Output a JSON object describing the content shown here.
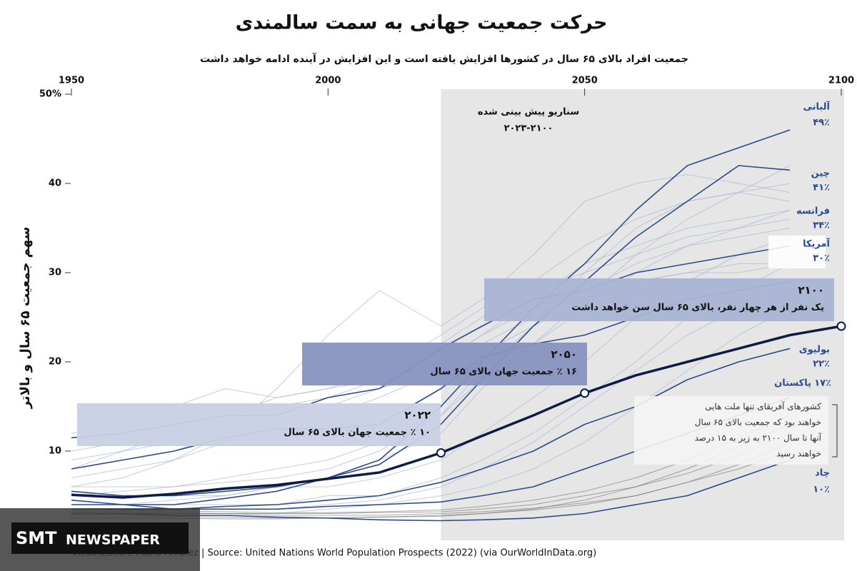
{
  "chart_data": {
    "type": "line",
    "title": "حرکت جمعیت جهانی به سمت سالمندی",
    "subtitle": "جمعیت افراد بالای ۶۵ سال در کشورها افزایش یافته است و این افزایش در آینده ادامه خواهد داشت",
    "y_label": "سهم جمعیت ۶۵ سال و بالاتر",
    "projection_label": [
      "سناریو پیش بینی شده",
      "۲۰۲۳-۲۱۰۰"
    ],
    "projection_start": 2022,
    "source": "Visualization: Pablo Alvarez | Source: United Nations World Population Prospects (2022) (via OurWorldInData.org)",
    "logo": [
      "SMT",
      "NEWSPAPER"
    ],
    "xlim": [
      1950,
      2100
    ],
    "xticks": [
      1950,
      2000,
      2050,
      2100
    ],
    "ylim": [
      0,
      50
    ],
    "yticks": [
      10,
      20,
      30,
      40,
      {
        "value": 50,
        "label": "50%"
      }
    ],
    "x": [
      1950,
      1960,
      1970,
      1980,
      1990,
      2000,
      2010,
      2022,
      2030,
      2040,
      2050,
      2060,
      2070,
      2080,
      2090,
      2100
    ],
    "series": [
      {
        "color": "#0d1b45",
        "values": [
          5.1,
          4.8,
          5.2,
          5.8,
          6.2,
          6.9,
          7.6,
          9.8,
          11.7,
          14,
          16.5,
          18.5,
          20,
          21.5,
          23,
          24
        ]
      },
      {
        "name": "آلبانی",
        "label": "۴۹٪",
        "color": "#2c4a8c",
        "values": [
          5.5,
          5,
          5,
          5.5,
          6,
          7,
          9,
          15,
          20,
          26,
          31,
          37,
          42,
          44,
          46,
          null
        ]
      },
      {
        "name": "چین",
        "label": "۴۱٪",
        "color": "#2c4a8c",
        "values": [
          4.5,
          4,
          4,
          4.7,
          5.5,
          7,
          8.5,
          13,
          18,
          24,
          29,
          34,
          38,
          42,
          41.5,
          null
        ]
      },
      {
        "name": "فرانسه",
        "label": "۳۴٪",
        "color": "#2c4a8c",
        "values": [
          11.5,
          12,
          13,
          14,
          14,
          16,
          17,
          21.5,
          24,
          27,
          28,
          30,
          31,
          32,
          33,
          null
        ]
      },
      {
        "name": "آمریکا",
        "label": "۳۰٪",
        "color": "#2c4a8c",
        "values": [
          8,
          9,
          10,
          11.5,
          12.5,
          12.5,
          13,
          17,
          20.5,
          22,
          23,
          25,
          27,
          28,
          29,
          null
        ]
      },
      {
        "name": "بولیوی",
        "label": "۲۲٪",
        "color": "#2c4a8c",
        "values": [
          3.5,
          3.5,
          3.5,
          3.8,
          4,
          4.5,
          5,
          6.5,
          8,
          10,
          13,
          15,
          18,
          20,
          21.5,
          null
        ]
      },
      {
        "name": "پاکستان",
        "label": "۱۷٪",
        "color": "#2c4a8c",
        "values": [
          4,
          4,
          3.5,
          3.5,
          3.5,
          3.8,
          4,
          4.3,
          5,
          6,
          8,
          10,
          12,
          14,
          16,
          null
        ]
      },
      {
        "name": "چاد",
        "label": "۱۰٪",
        "color": "#2c4a8c",
        "values": [
          3,
          3,
          2.8,
          2.8,
          2.6,
          2.5,
          2.3,
          2.2,
          2.3,
          2.5,
          3,
          4,
          5,
          7,
          9,
          null
        ]
      }
    ],
    "background_color": "#aab6d2",
    "background_series": [
      [
        8,
        9,
        10,
        12,
        13,
        15,
        17,
        20,
        23,
        27,
        31,
        33,
        35,
        36,
        37,
        null
      ],
      [
        9,
        10,
        11,
        13,
        14,
        16,
        18,
        22,
        25,
        28,
        30,
        32,
        34,
        35,
        36,
        null
      ],
      [
        7,
        8,
        9,
        11,
        13,
        14,
        16,
        19,
        22,
        25,
        28,
        31,
        33,
        34,
        35,
        null
      ],
      [
        6,
        6,
        6,
        7,
        8,
        9,
        11,
        14,
        18,
        22,
        26,
        30,
        33,
        35,
        37,
        null
      ],
      [
        5,
        5,
        5,
        5,
        6,
        6,
        7,
        9,
        12,
        16,
        20,
        25,
        29,
        32,
        34,
        null
      ],
      [
        4,
        4,
        4,
        4,
        4,
        5,
        5,
        7,
        9,
        12,
        16,
        20,
        25,
        28,
        31,
        null
      ],
      [
        3.5,
        3.5,
        3.5,
        3.5,
        3.5,
        4,
        4.5,
        6,
        8,
        11,
        15,
        19,
        23,
        26,
        29,
        null
      ],
      [
        3,
        3,
        3,
        3,
        3,
        3.5,
        4,
        5,
        6,
        8,
        11,
        15,
        19,
        23,
        26,
        null
      ],
      [
        10,
        11,
        12,
        14,
        15,
        16,
        17,
        19,
        21,
        24,
        27,
        29,
        30,
        31,
        31,
        null
      ],
      [
        12,
        13,
        15,
        17,
        16,
        17,
        18,
        20,
        23,
        26,
        28,
        29,
        30,
        30,
        31,
        null
      ],
      [
        6,
        7,
        9,
        12,
        17,
        23,
        28,
        24,
        27,
        32,
        38,
        40,
        41,
        40,
        39,
        null
      ],
      [
        4,
        4,
        4.5,
        5,
        6,
        7,
        9,
        12,
        17,
        22,
        27,
        32,
        36,
        39,
        42,
        null
      ],
      [
        8,
        10,
        12,
        14,
        16,
        17,
        19,
        23,
        26,
        29,
        33,
        36,
        38,
        39,
        40,
        null
      ],
      [
        5,
        5.5,
        6,
        6.5,
        7,
        8,
        10,
        14,
        19,
        24,
        30,
        35,
        38,
        39,
        38,
        null
      ]
    ],
    "africa_color": "#6c6c6c",
    "africa_series": [
      [
        3,
        3,
        3,
        3,
        2.8,
        2.8,
        2.8,
        3,
        3.2,
        3.6,
        4.2,
        5,
        6.5,
        8,
        10,
        null
      ],
      [
        2.5,
        2.5,
        2.5,
        2.4,
        2.4,
        2.5,
        2.6,
        2.8,
        3,
        3.4,
        4,
        5,
        6.5,
        8.5,
        11,
        null
      ],
      [
        3.2,
        3.2,
        3.1,
        3,
        3,
        3,
        3.1,
        3.2,
        3.5,
        4,
        5,
        6,
        7.5,
        9.5,
        12,
        null
      ],
      [
        2.8,
        2.8,
        2.7,
        2.6,
        2.5,
        2.5,
        2.6,
        2.7,
        3,
        3.5,
        4.5,
        6,
        8,
        10.5,
        13,
        null
      ],
      [
        3.5,
        3.4,
        3.3,
        3.2,
        3.1,
        3.1,
        3.2,
        3.4,
        3.8,
        4.5,
        5.5,
        7,
        9,
        11.5,
        14,
        null
      ]
    ],
    "annotations": [
      {
        "title": "۲۰۲۲",
        "text": "۱۰ ٪ جمعیت جهان بالای ۶۵ سال"
      },
      {
        "title": "۲۰۵۰",
        "text": "۱۶ ٪ جمعیت جهان بالای ۶۵ سال"
      },
      {
        "title": "۲۱۰۰",
        "text": "یک نفر از هر چهار نفر، بالای ۶۵ سال سن خواهد داشت"
      }
    ],
    "africa_note": [
      "کشورهای آفریقای تنها ملت هایی",
      "خواهند بود که جمعیت بالای ۶۵ سال",
      "آنها تا سال ۲۱۰۰ به زیر به ۱۵ درصد",
      "خواهند رسید"
    ]
  }
}
